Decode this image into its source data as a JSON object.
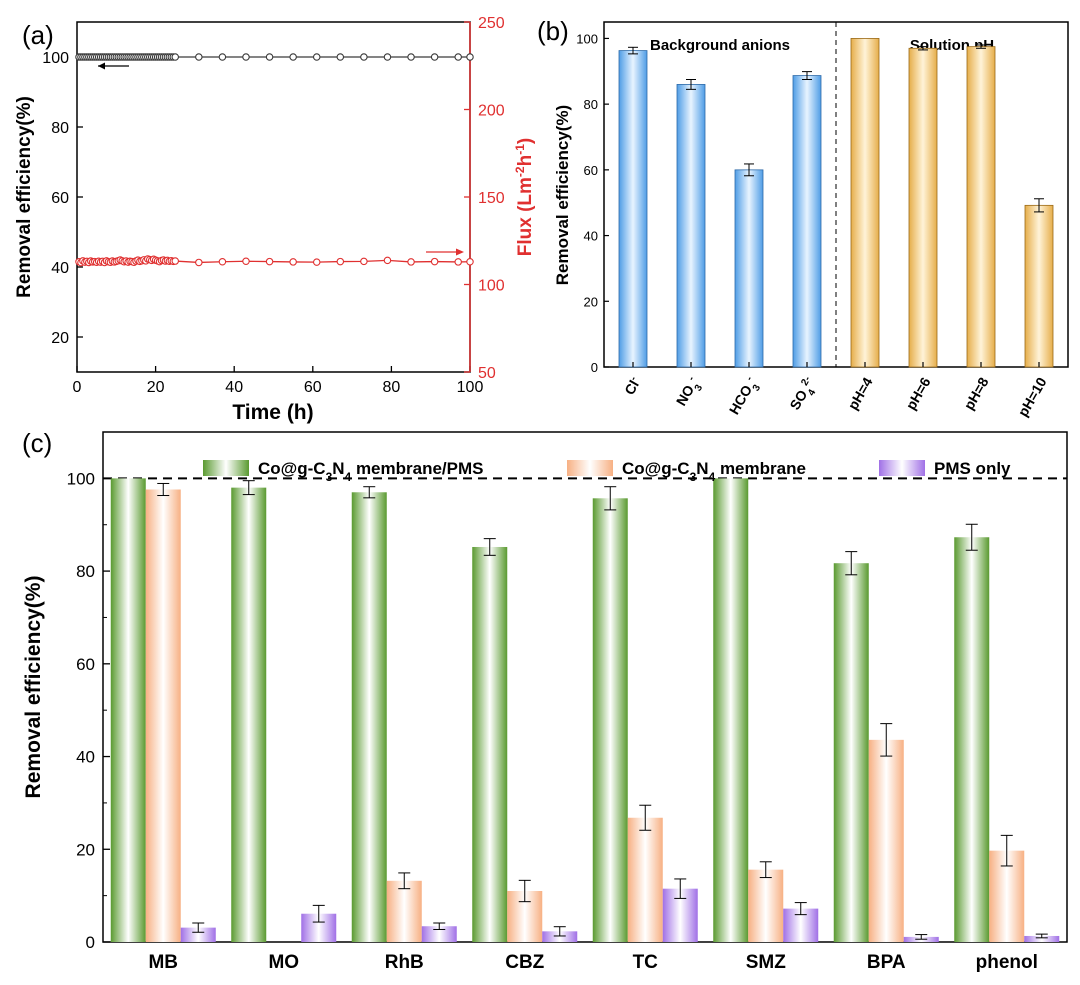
{
  "chart_data": [
    {
      "panel": "(a)",
      "type": "line",
      "xlabel": "Time (h)",
      "ylabel": "Removal efficiency(%)",
      "y2label_main": "Flux (Lm",
      "y2label_sup1": "-2",
      "y2label_mid": "h",
      "y2label_sup2": "-1",
      "y2label_end": ")",
      "xlim": [
        0,
        100
      ],
      "ylim": [
        10,
        110
      ],
      "y2lim": [
        50,
        250
      ],
      "xticks": [
        "0",
        "20",
        "40",
        "60",
        "80",
        "100"
      ],
      "yticks": [
        "20",
        "40",
        "60",
        "80",
        "100"
      ],
      "y2ticks": [
        "50",
        "100",
        "150",
        "200",
        "250"
      ],
      "colors": {
        "removal": "#3a3a3a",
        "flux": "#e03030"
      },
      "series": [
        {
          "axis": "left",
          "x": [
            0.5,
            1,
            1.5,
            2,
            2.5,
            3,
            3.5,
            4,
            4.5,
            5,
            5.5,
            6,
            6.5,
            7,
            7.5,
            8,
            8.5,
            9,
            9.5,
            10,
            10.5,
            11,
            11.5,
            12,
            12.5,
            13,
            13.5,
            14,
            14.5,
            15,
            15.5,
            16,
            16.5,
            17,
            17.5,
            18,
            18.5,
            19,
            19.5,
            20,
            20.5,
            21,
            21.5,
            22,
            22.5,
            23,
            23.5,
            24,
            24.5,
            25,
            31,
            37,
            43,
            49,
            55,
            61,
            67,
            73,
            79,
            85,
            91,
            97,
            100
          ],
          "y": [
            100,
            100,
            100,
            100,
            100,
            100,
            100,
            100,
            100,
            100,
            100,
            100,
            100,
            100,
            100,
            100,
            100,
            100,
            100,
            100,
            100,
            100,
            100,
            100,
            100,
            100,
            100,
            100,
            100,
            100,
            100,
            100,
            100,
            100,
            100,
            100,
            100,
            100,
            100,
            100,
            100,
            100,
            100,
            100,
            100,
            100,
            100,
            100,
            100,
            100,
            100,
            100,
            100,
            100,
            100,
            100,
            100,
            100,
            100,
            100,
            100,
            100,
            100
          ]
        },
        {
          "axis": "right",
          "x": [
            0.5,
            1,
            1.5,
            2,
            2.5,
            3,
            3.5,
            4,
            4.5,
            5,
            5.5,
            6,
            6.5,
            7,
            7.5,
            8,
            8.5,
            9,
            9.5,
            10,
            10.5,
            11,
            11.5,
            12,
            12.5,
            13,
            13.5,
            14,
            14.5,
            15,
            15.5,
            16,
            16.5,
            17,
            17.5,
            18,
            18.5,
            19,
            19.5,
            20,
            20.5,
            21,
            21.5,
            22,
            22.5,
            23,
            23.5,
            24,
            24.5,
            25,
            31,
            37,
            43,
            49,
            55,
            61,
            67,
            73,
            79,
            85,
            91,
            97,
            100
          ],
          "y": [
            113,
            112.5,
            113.5,
            112.8,
            113.2,
            112.6,
            113.4,
            112.9,
            113.1,
            112.7,
            113.3,
            112.8,
            113.2,
            112.6,
            113.5,
            113,
            112.7,
            113.4,
            112.9,
            113.2,
            113.6,
            114,
            113.5,
            113,
            113.4,
            112.8,
            113.3,
            113.1,
            112.7,
            113.4,
            113.9,
            113.2,
            113.6,
            114.1,
            113.5,
            114.6,
            114.2,
            113.8,
            114.4,
            113.9,
            113.5,
            113.1,
            113.7,
            114,
            113.4,
            113.8,
            113.3,
            113.6,
            113.2,
            113.4,
            112.6,
            113,
            113.3,
            113.1,
            112.9,
            112.8,
            113.1,
            113.2,
            113.8,
            112.9,
            113.1,
            112.9,
            113
          ]
        }
      ]
    },
    {
      "panel": "(b)",
      "type": "bar",
      "ylabel": "Removal efficiency(%)",
      "ylim": [
        0,
        105
      ],
      "yticks": [
        "0",
        "20",
        "40",
        "60",
        "80",
        "100"
      ],
      "group_labels": [
        "Background anions",
        "Solution pH"
      ],
      "categories": [
        {
          "main": "Cl",
          "sup": "-",
          "sub": ""
        },
        {
          "main": "NO",
          "sub": "3",
          "sup": "-"
        },
        {
          "main": "HCO",
          "sub": "3",
          "sup": "-"
        },
        {
          "main": "SO",
          "sub": "4",
          "sup": "2-"
        },
        {
          "main": "pH=4",
          "sub": "",
          "sup": ""
        },
        {
          "main": "pH=6",
          "sub": "",
          "sup": ""
        },
        {
          "main": "pH=8",
          "sub": "",
          "sup": ""
        },
        {
          "main": "pH=10",
          "sub": "",
          "sup": ""
        }
      ],
      "values": [
        96.3,
        86,
        60,
        88.7,
        100,
        97,
        97.5,
        49.2
      ],
      "errors": [
        1.0,
        1.5,
        1.8,
        1.2,
        0,
        0.5,
        0.5,
        2.0
      ],
      "colors": {
        "anions": "#6ab4ee",
        "ph": "#f2c46e"
      }
    },
    {
      "panel": "(c)",
      "type": "bar",
      "ylabel": "Removal efficiency(%)",
      "ylim": [
        0,
        110
      ],
      "yticks": [
        "0",
        "20",
        "40",
        "60",
        "80",
        "100"
      ],
      "reference_line": 100,
      "categories": [
        "MB",
        "MO",
        "RhB",
        "CBZ",
        "TC",
        "SMZ",
        "BPA",
        "phenol"
      ],
      "legend": [
        {
          "pre": "Co@g-C",
          "sub1": "3",
          "mid": "N",
          "sub2": "4",
          "post": " membrane/PMS"
        },
        {
          "pre": "Co@g-C",
          "sub1": "3",
          "mid": "N",
          "sub2": "4",
          "post": " membrane"
        },
        {
          "pre": "PMS only",
          "sub1": "",
          "mid": "",
          "sub2": "",
          "post": ""
        }
      ],
      "series": [
        {
          "values": [
            100,
            98,
            97,
            85.2,
            95.7,
            100,
            81.7,
            87.3
          ],
          "errors": [
            0,
            1.5,
            1.2,
            1.8,
            2.5,
            0,
            2.5,
            2.8
          ],
          "color": "#62a03a"
        },
        {
          "values": [
            97.6,
            0,
            13.2,
            11,
            26.8,
            15.6,
            43.6,
            19.7
          ],
          "errors": [
            1.3,
            0,
            1.7,
            2.3,
            2.7,
            1.7,
            3.5,
            3.3
          ],
          "color": "#f7b68a"
        },
        {
          "values": [
            3.1,
            6.1,
            3.4,
            2.3,
            11.5,
            7.2,
            1.1,
            1.3
          ],
          "errors": [
            1.0,
            1.8,
            0.7,
            1.0,
            2.1,
            1.3,
            0.5,
            0.4
          ],
          "color": "#a77ae6"
        }
      ]
    }
  ]
}
